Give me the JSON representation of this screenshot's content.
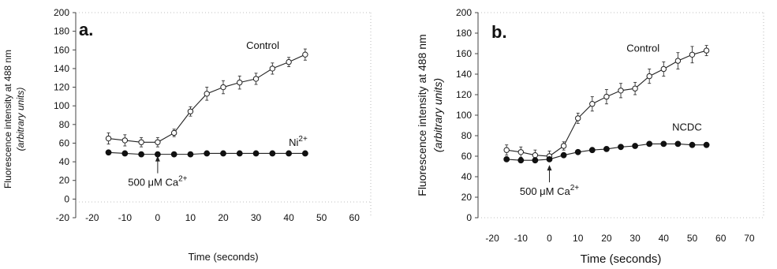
{
  "chart_data": [
    {
      "type": "line",
      "panel_label": "a.",
      "xlabel": "Time (seconds)",
      "ylabel": "Fluorescence intensity at 488 nm",
      "ylabel_sub": "(arbitrary units)",
      "xlim": [
        -25,
        65
      ],
      "ylim": [
        -20,
        200
      ],
      "xticks": [
        -20,
        -10,
        0,
        10,
        20,
        30,
        40,
        50,
        60
      ],
      "yticks": [
        -20,
        0,
        20,
        40,
        60,
        80,
        100,
        120,
        140,
        160,
        180,
        200
      ],
      "grid": false,
      "annotation": {
        "text": "500 μM Ca",
        "sup": "2+",
        "x": 0,
        "y": 48
      },
      "series": [
        {
          "name": "Control",
          "marker": "open-circle",
          "x": [
            -15,
            -10,
            -5,
            0,
            5,
            10,
            15,
            20,
            25,
            30,
            35,
            40,
            45
          ],
          "y": [
            65,
            63,
            61,
            61,
            71,
            94,
            113,
            120,
            125,
            129,
            140,
            147,
            155
          ],
          "err": [
            6,
            6,
            5,
            5,
            4,
            5,
            7,
            7,
            7,
            6,
            6,
            5,
            6
          ],
          "label_pos": {
            "x": 27,
            "y": 161
          }
        },
        {
          "name": "Ni",
          "name_sup": "2+",
          "marker": "filled-circle",
          "x": [
            -15,
            -10,
            -5,
            0,
            5,
            10,
            15,
            20,
            25,
            30,
            35,
            40,
            45
          ],
          "y": [
            50,
            49,
            48,
            48,
            48,
            48,
            49,
            49,
            49,
            49,
            49,
            49,
            49
          ],
          "err": [
            1,
            1,
            1,
            1,
            1,
            1,
            1,
            1,
            1,
            1,
            1,
            1,
            1
          ],
          "label_pos": {
            "x": 40,
            "y": 57
          }
        }
      ]
    },
    {
      "type": "line",
      "panel_label": "b.",
      "xlabel": "Time (seconds)",
      "ylabel": "Fluorescence intensity at 488 nm",
      "ylabel_sub": "(arbitrary units)",
      "xlim": [
        -25,
        75
      ],
      "ylim": [
        0,
        200
      ],
      "xticks": [
        -20,
        -10,
        0,
        10,
        20,
        30,
        40,
        50,
        60,
        70
      ],
      "yticks": [
        0,
        20,
        40,
        60,
        80,
        100,
        120,
        140,
        160,
        180,
        200
      ],
      "grid": false,
      "annotation": {
        "text": "500 μM Ca",
        "sup": "2+",
        "x": 0,
        "y": 53
      },
      "series": [
        {
          "name": "Control",
          "marker": "open-circle",
          "x": [
            -15,
            -10,
            -5,
            0,
            5,
            10,
            15,
            20,
            25,
            30,
            35,
            40,
            45,
            50,
            55
          ],
          "y": [
            66,
            64,
            61,
            60,
            70,
            97,
            111,
            118,
            124,
            126,
            138,
            145,
            153,
            159,
            163
          ],
          "err": [
            5,
            5,
            5,
            5,
            4,
            5,
            7,
            7,
            7,
            6,
            7,
            7,
            8,
            8,
            5
          ],
          "label_pos": {
            "x": 27,
            "y": 162
          }
        },
        {
          "name": "NCDC",
          "marker": "filled-circle",
          "x": [
            -15,
            -10,
            -5,
            0,
            5,
            10,
            15,
            20,
            25,
            30,
            35,
            40,
            45,
            50,
            55
          ],
          "y": [
            57,
            56,
            56,
            57,
            61,
            64,
            66,
            67,
            69,
            70,
            72,
            72,
            72,
            71,
            71
          ],
          "err": [
            2,
            2,
            2,
            2,
            2,
            2,
            2,
            2,
            2,
            2,
            2,
            2,
            2,
            2,
            2
          ],
          "label_pos": {
            "x": 43,
            "y": 85
          }
        }
      ]
    }
  ]
}
